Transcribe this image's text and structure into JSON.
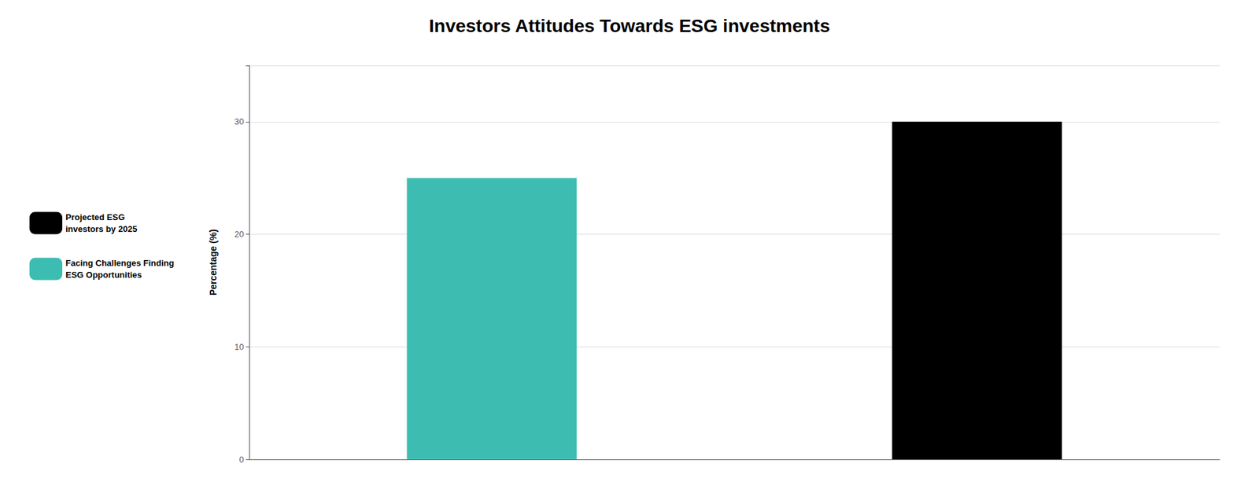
{
  "chart_data": {
    "type": "bar",
    "title": "Investors Attitudes Towards ESG investments",
    "ylabel": "Percentage (%)",
    "categories": [
      null,
      null
    ],
    "series": [
      {
        "name": "Projected ESG\ninvestors by 2025",
        "color": "#000000",
        "values": [
          null,
          30
        ]
      },
      {
        "name": "Facing Challenges Finding\nESG Opportunities",
        "color": "#3dbdb1",
        "values": [
          25,
          null
        ]
      }
    ],
    "ylim": [
      0,
      35
    ],
    "yticks": [
      0,
      10,
      20,
      30
    ],
    "grid": true,
    "legend": "left",
    "tick_labels": "y"
  }
}
